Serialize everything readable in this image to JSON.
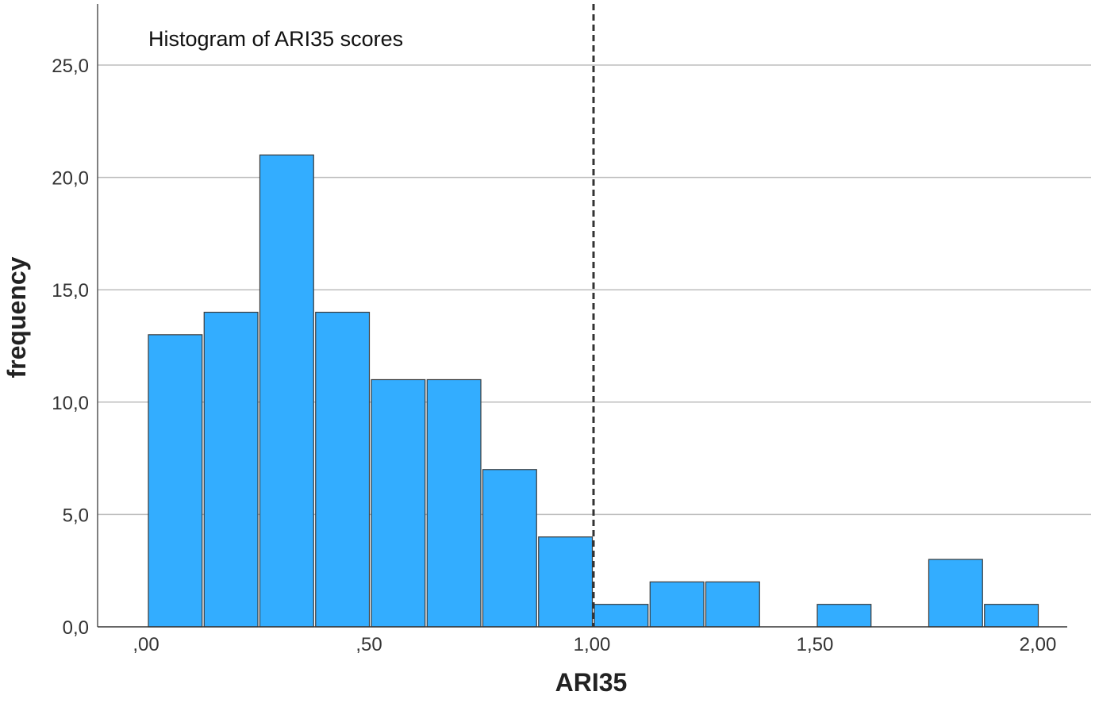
{
  "chart_data": {
    "type": "bar",
    "title": "Histogram of ARI35 scores",
    "xlabel": "ARI35",
    "ylabel": "frequency",
    "bin_width": 0.125,
    "bins": [
      {
        "start": 0.0,
        "end": 0.125,
        "count": 13
      },
      {
        "start": 0.125,
        "end": 0.25,
        "count": 14
      },
      {
        "start": 0.25,
        "end": 0.375,
        "count": 21
      },
      {
        "start": 0.375,
        "end": 0.5,
        "count": 14
      },
      {
        "start": 0.5,
        "end": 0.625,
        "count": 11
      },
      {
        "start": 0.625,
        "end": 0.75,
        "count": 11
      },
      {
        "start": 0.75,
        "end": 0.875,
        "count": 7
      },
      {
        "start": 0.875,
        "end": 1.0,
        "count": 4
      },
      {
        "start": 1.0,
        "end": 1.125,
        "count": 1
      },
      {
        "start": 1.125,
        "end": 1.25,
        "count": 2
      },
      {
        "start": 1.25,
        "end": 1.375,
        "count": 2
      },
      {
        "start": 1.375,
        "end": 1.5,
        "count": 0
      },
      {
        "start": 1.5,
        "end": 1.625,
        "count": 1
      },
      {
        "start": 1.625,
        "end": 1.75,
        "count": 0
      },
      {
        "start": 1.75,
        "end": 1.875,
        "count": 3
      },
      {
        "start": 1.875,
        "end": 2.0,
        "count": 1
      }
    ],
    "xticks": [
      {
        "value": 0,
        "label": ",00"
      },
      {
        "value": 0.5,
        "label": ",50"
      },
      {
        "value": 1.0,
        "label": "1,00"
      },
      {
        "value": 1.5,
        "label": "1,50"
      },
      {
        "value": 2.0,
        "label": "2,00"
      }
    ],
    "yticks": [
      {
        "value": 0,
        "label": "0,0"
      },
      {
        "value": 5,
        "label": "5,0"
      },
      {
        "value": 10,
        "label": "10,0"
      },
      {
        "value": 15,
        "label": "15,0"
      },
      {
        "value": 20,
        "label": "20,0"
      },
      {
        "value": 25,
        "label": "25,0"
      }
    ],
    "ylim": [
      0,
      25
    ],
    "xlim": [
      0,
      2
    ],
    "reference_line": {
      "x": 1.0,
      "style": "dashed"
    },
    "grid": "horizontal",
    "colors": {
      "bar": "#33adff",
      "bar_edge": "#3a3a3a",
      "grid": "#bdbdbd",
      "reference_line": "#333333"
    }
  }
}
